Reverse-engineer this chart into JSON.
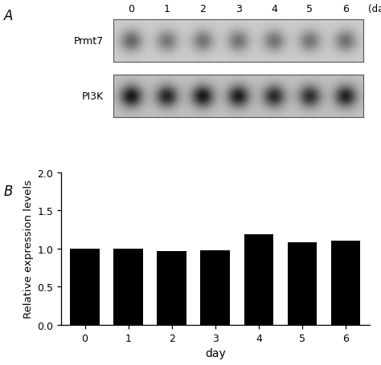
{
  "panel_a_label": "A",
  "panel_b_label": "B",
  "days": [
    0,
    1,
    2,
    3,
    4,
    5,
    6
  ],
  "day_label": "(day)",
  "bar_values": [
    1.0,
    1.0,
    0.97,
    0.98,
    1.19,
    1.08,
    1.1
  ],
  "bar_color": "#000000",
  "ylabel": "Relative expression levels",
  "xlabel": "day",
  "ylim": [
    0,
    2.0
  ],
  "yticks": [
    0.0,
    0.5,
    1.0,
    1.5,
    2.0
  ],
  "wb_label1": "Prmt7",
  "wb_label2": "PI3K",
  "background_color": "#ffffff",
  "tick_fontsize": 9,
  "label_fontsize": 9,
  "axis_label_fontsize": 10,
  "prmt7_intensities": [
    0.72,
    0.6,
    0.62,
    0.63,
    0.63,
    0.62,
    0.65
  ],
  "pi3k_intensities": [
    0.88,
    0.8,
    0.88,
    0.85,
    0.78,
    0.75,
    0.82
  ]
}
